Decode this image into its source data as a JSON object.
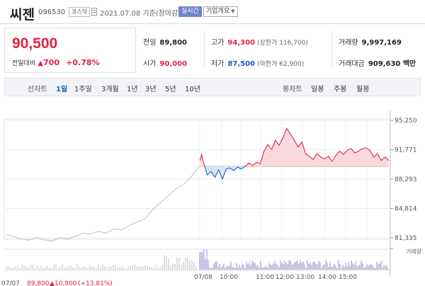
{
  "header": {
    "name": "씨젠",
    "code": "096530",
    "market": "코스닥",
    "date": "2021.07.08 기준(장마감)",
    "realtime": "실시간",
    "company_info": "기업개요"
  },
  "quote": {
    "price": "90,500",
    "change_label": "전일대비",
    "change_value": "700",
    "change_pct": "+0.78%",
    "prev_close_label": "전일",
    "prev_close": "89,800",
    "open_label": "시가",
    "open": "90,000",
    "high_label": "고가",
    "high": "94,300",
    "upper_limit": "(상한가 116,700)",
    "low_label": "저가",
    "low": "87,500",
    "lower_limit": "(하한가 62,900)",
    "volume_label": "거래량",
    "volume": "9,997,169",
    "amount_label": "거래대금",
    "amount": "909,630 백만"
  },
  "toolbar": {
    "line_chart": "선차트",
    "periods": [
      "1일",
      "1주일",
      "3개월",
      "1년",
      "3년",
      "5년",
      "10년"
    ],
    "active_period": "1일",
    "candle_chart": "봉차트",
    "candle_periods": [
      "일봉",
      "주봉",
      "월봉"
    ]
  },
  "colors": {
    "up": "#e12343",
    "down": "#1261c4",
    "accent": "#6d85c9"
  },
  "chart_data": {
    "type": "line",
    "y_ticks": [
      "95,250",
      "91,771",
      "88,293",
      "84,814",
      "81,335"
    ],
    "ylim": [
      81335,
      95250
    ],
    "prev_close": 89800,
    "x_ticks": [
      "07/08",
      "10:00",
      "11:00",
      "12:00",
      "13:00",
      "14:00",
      "15:00"
    ],
    "volume_label": "거래량",
    "prev_day": {
      "label": "07/07",
      "close": "89,800",
      "change": "10,900",
      "change_pct": "(+13.81%)",
      "x": [
        0,
        4,
        8,
        12,
        16,
        20,
        24,
        28,
        32,
        36,
        40,
        44,
        48,
        52,
        56,
        60,
        64,
        68,
        72,
        76,
        80,
        84,
        88,
        92,
        96,
        100
      ],
      "values": [
        81700,
        81500,
        81200,
        81050,
        81400,
        81100,
        80950,
        81350,
        81200,
        81500,
        81900,
        81800,
        82100,
        81900,
        82400,
        82300,
        82800,
        83200,
        83600,
        84700,
        85500,
        86300,
        87100,
        87700,
        88600,
        89800
      ]
    },
    "today": {
      "x": [
        0,
        1,
        2,
        4,
        6,
        8,
        10,
        12,
        14,
        16,
        18,
        20,
        22,
        24,
        26,
        28,
        30,
        32,
        34,
        36,
        38,
        40,
        42,
        44,
        46,
        48,
        50,
        52,
        54,
        56,
        58,
        60,
        62,
        64,
        66,
        68,
        70,
        72,
        74,
        76,
        78,
        80,
        82,
        84,
        86,
        88,
        90,
        92,
        94,
        96,
        98,
        100
      ],
      "values": [
        90500,
        91200,
        90200,
        88800,
        89200,
        88500,
        89400,
        88300,
        89500,
        89600,
        89300,
        89700,
        89500,
        89800,
        90200,
        89900,
        90300,
        90100,
        91600,
        92400,
        91800,
        92900,
        92300,
        93200,
        94300,
        93600,
        92900,
        92100,
        92700,
        91300,
        91000,
        90600,
        91300,
        90900,
        90700,
        91000,
        90400,
        91100,
        91600,
        91200,
        91700,
        91900,
        91400,
        91600,
        91900,
        92000,
        91700,
        90900,
        91300,
        90500,
        90900,
        90500
      ]
    }
  }
}
